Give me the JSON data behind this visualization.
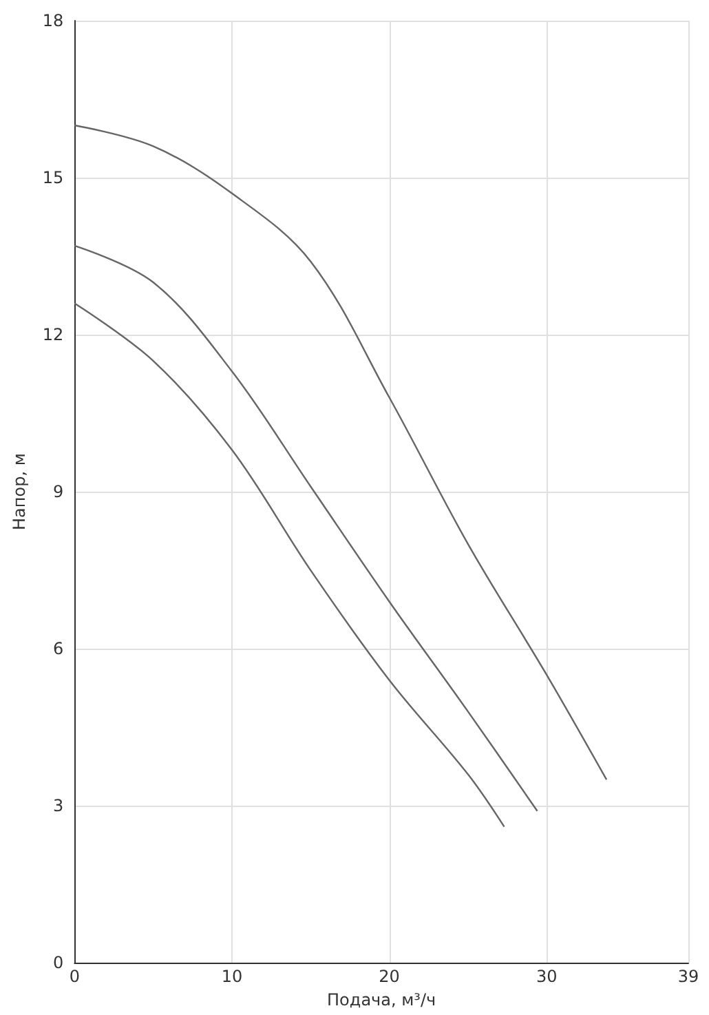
{
  "chart_data": {
    "type": "line",
    "xlabel": "Подача, м³/ч",
    "ylabel": "Напор, м",
    "xlim": [
      0,
      39
    ],
    "xticks": [
      0,
      10,
      20,
      30,
      39
    ],
    "ylim": [
      0,
      18
    ],
    "yticks": [
      0,
      3,
      6,
      9,
      12,
      15,
      18
    ],
    "grid": true,
    "marker": "none",
    "line_style": "solid",
    "series": [
      {
        "color": "#666666",
        "x": [
          0,
          5,
          10,
          15,
          20,
          25,
          30,
          33.8
        ],
        "values": [
          16.0,
          15.6,
          14.7,
          13.4,
          10.8,
          8.0,
          5.5,
          3.5
        ]
      },
      {
        "color": "#666666",
        "x": [
          0,
          5,
          10,
          15,
          20,
          25,
          29.4
        ],
        "values": [
          13.7,
          13.0,
          11.3,
          9.1,
          6.9,
          4.8,
          2.9
        ]
      },
      {
        "color": "#666666",
        "x": [
          0,
          5,
          10,
          15,
          20,
          25,
          27.3
        ],
        "values": [
          12.6,
          11.5,
          9.8,
          7.5,
          5.4,
          3.6,
          2.6
        ]
      }
    ]
  }
}
